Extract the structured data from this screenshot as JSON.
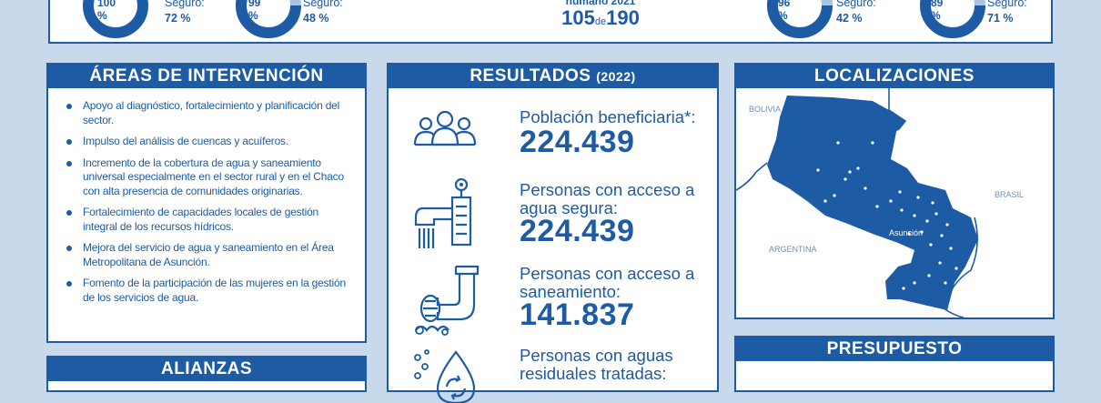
{
  "top_stats": [
    {
      "pct": "100 %",
      "caption_prefix": "Seguro:",
      "caption_value": "72 %",
      "fraction": 1.0
    },
    {
      "pct": "99 %",
      "caption_prefix": "Seguro:",
      "caption_value": "48 %",
      "fraction": 0.99
    },
    {
      "pct": "96 %",
      "caption_prefix": "Seguro:",
      "caption_value": "42 %",
      "fraction": 0.96
    },
    {
      "pct": "89 %",
      "caption_prefix": "Seguro:",
      "caption_value": "71 %",
      "fraction": 0.89
    }
  ],
  "hdi": {
    "label": "humano 2021",
    "rank": "105",
    "of": "de",
    "total": "190"
  },
  "areas": {
    "title": "ÁREAS DE INTERVENCIÓN",
    "items": [
      "Apoyo al diagnóstico, fortalecimiento y planificación del sector.",
      "Impulso del análisis de cuencas y acuíferos.",
      "Incremento de la cobertura de agua y saneamiento universal especialmente en el sector rural y en el Chaco con alta presencia de comunidades originarias.",
      "Fortalecimiento de capacidades locales de gestión integral de los recursos hídricos.",
      "Mejora del servicio de agua y saneamiento en el Área Metropolitana de Asunción.",
      "Fomento de la participación de las mujeres en la gestión de los servicios de agua."
    ]
  },
  "alianzas": {
    "title": "ALIANZAS"
  },
  "resultados": {
    "title": "RESULTADOS",
    "year": "(2022)",
    "items": [
      {
        "label": "Población beneficiaria*:",
        "value": "224.439",
        "icon": "people-icon"
      },
      {
        "label": "Personas con acceso a agua segura:",
        "value": "224.439",
        "icon": "faucet-icon"
      },
      {
        "label": "Personas con acceso a saneamiento:",
        "value": "141.837",
        "icon": "pipe-icon"
      },
      {
        "label": "Personas con aguas residuales tratadas:",
        "value": "",
        "icon": "water-drop-icon"
      }
    ]
  },
  "localizaciones": {
    "title": "LOCALIZACIONES",
    "labels": {
      "bolivia": "BOLIVIA",
      "brasil": "BRASIL",
      "argentina": "ARGENTINA",
      "capital": "Asunción"
    }
  },
  "presupuesto": {
    "title": "PRESUPUESTO"
  },
  "colors": {
    "primary": "#1d5ba5",
    "light": "#c9d9ec",
    "ring_light": "#a9c3e3"
  }
}
